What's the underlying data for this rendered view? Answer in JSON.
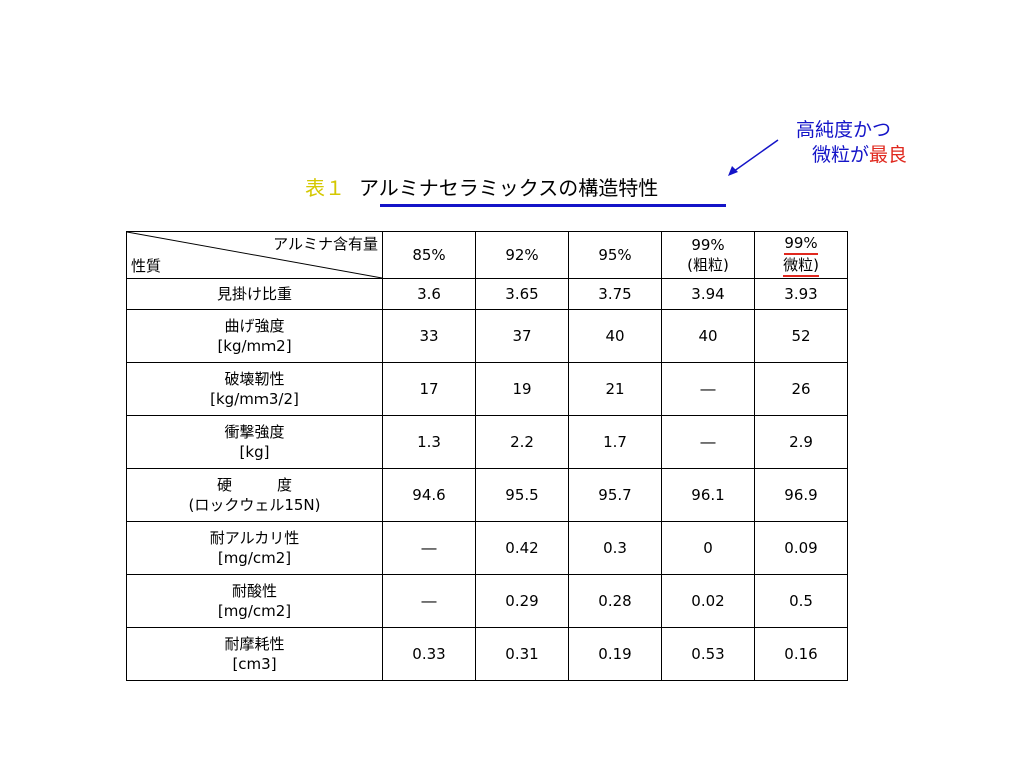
{
  "callout": {
    "line1": "高純度かつ",
    "line2_a": "微粒が",
    "line2_b": "最良"
  },
  "title": {
    "number": "表１",
    "text": "アルミナセラミックスの構造特性"
  },
  "table": {
    "corner_top": "アルミナ含有量",
    "corner_bottom": "性質",
    "columns": [
      [
        "85%"
      ],
      [
        "92%"
      ],
      [
        "95%"
      ],
      [
        "99%",
        "(粗粒)"
      ],
      [
        "99%",
        "微粒)"
      ]
    ],
    "rows": [
      {
        "label": [
          "見掛け比重"
        ],
        "values": [
          "3.6",
          "3.65",
          "3.75",
          "3.94",
          "3.93"
        ]
      },
      {
        "label": [
          "曲げ強度",
          "[kg/mｍ2]"
        ],
        "values": [
          "33",
          "37",
          "40",
          "40",
          "52"
        ]
      },
      {
        "label": [
          "破壊靭性",
          "[kg/mｍ3/2]"
        ],
        "values": [
          "17",
          "19",
          "21",
          "―",
          "26"
        ]
      },
      {
        "label": [
          "衝撃強度",
          "[kg]"
        ],
        "values": [
          "1.3",
          "2.2",
          "1.7",
          "―",
          "2.9"
        ]
      },
      {
        "label": [
          "硬　　　度",
          "(ロックウェル15N)"
        ],
        "values": [
          "94.6",
          "95.5",
          "95.7",
          "96.1",
          "96.9"
        ]
      },
      {
        "label": [
          "耐アルカリ性",
          "[mg/cm2]"
        ],
        "values": [
          "―",
          "0.42",
          "0.3",
          "0",
          "0.09"
        ]
      },
      {
        "label": [
          "耐酸性",
          "[mg/cm2]"
        ],
        "values": [
          "―",
          "0.29",
          "0.28",
          "0.02",
          "0.5"
        ]
      },
      {
        "label": [
          "耐摩耗性",
          "[cm3]"
        ],
        "values": [
          "0.33",
          "0.31",
          "0.19",
          "0.53",
          "0.16"
        ]
      }
    ]
  },
  "colors": {
    "accent_blue": "#1414c8",
    "accent_red": "#e0281e",
    "title_number": "#d4c800"
  }
}
